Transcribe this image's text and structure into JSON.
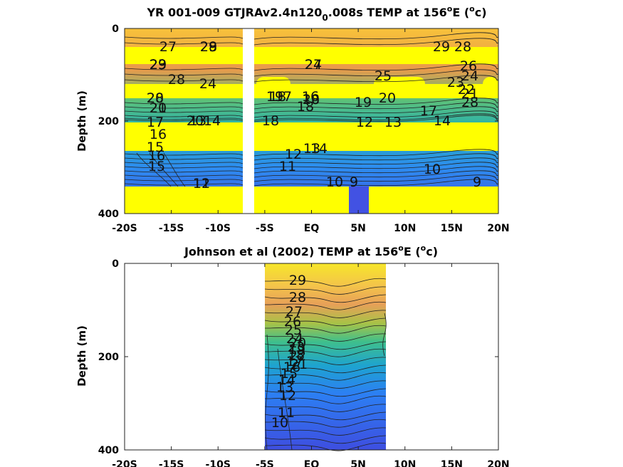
{
  "chart_data": [
    {
      "type": "heatmap",
      "title_main": "YR 001-009 GTJRAv2.4n120",
      "title_sub": "0",
      "title_tail": ".008s TEMP at 156",
      "title_sup": "o",
      "title_end": "E (",
      "title_unit_sup": "o",
      "title_unit": "c)",
      "ylabel": "Depth (m)",
      "xlim": [
        -20,
        20
      ],
      "ylim": [
        400,
        0
      ],
      "x_ticks": [
        -20,
        -15,
        -10,
        -5,
        0,
        5,
        10,
        15,
        20
      ],
      "x_tick_labels": [
        "-20S",
        "-15S",
        "-10S",
        "-5S",
        "EQ",
        "5N",
        "10N",
        "15N",
        "20N"
      ],
      "y_ticks": [
        0,
        200,
        400
      ],
      "y_tick_labels": [
        "0",
        "200",
        "400"
      ],
      "colormap": "parula",
      "missing_band_x": [
        -7.4,
        -6.8
      ],
      "contour_labels": [
        "27",
        "28",
        "29",
        "29",
        "28",
        "29",
        "29",
        "27",
        "24",
        "23",
        "28",
        "24",
        "25",
        "26",
        "24",
        "23",
        "22",
        "21",
        "28",
        "28",
        "20",
        "20",
        "18",
        "16",
        "19",
        "20",
        "21",
        "20",
        "19",
        "18",
        "17",
        "17",
        "16",
        "18",
        "17",
        "20",
        "18",
        "15",
        "14",
        "13",
        "14",
        "12",
        "13",
        "15",
        "16",
        "11",
        "10",
        "12",
        "13",
        "14",
        "9",
        "10",
        "11",
        "12",
        "9"
      ]
    },
    {
      "type": "heatmap",
      "title_main": "Johnson et al (2002) TEMP at 156",
      "title_sup": "o",
      "title_end": "E (",
      "title_unit_sup": "o",
      "title_unit": "c)",
      "ylabel": "Depth (m)",
      "xlim": [
        -20,
        20
      ],
      "ylim": [
        400,
        0
      ],
      "data_x_range": [
        -5,
        8
      ],
      "x_ticks": [
        -20,
        -15,
        -10,
        -5,
        0,
        5,
        10,
        15,
        20
      ],
      "x_tick_labels": [
        "-20S",
        "-15S",
        "-10S",
        "-5S",
        "EQ",
        "5N",
        "10N",
        "15N",
        "20N"
      ],
      "y_ticks": [
        0,
        200,
        400
      ],
      "y_tick_labels": [
        "0",
        "200",
        "400"
      ],
      "colormap": "parula",
      "contour_labels": [
        "29",
        "28",
        "27",
        "26",
        "25",
        "24",
        "23",
        "22",
        "21",
        "20",
        "19",
        "18",
        "17",
        "16",
        "15",
        "14",
        "13",
        "12",
        "11",
        "10"
      ]
    }
  ]
}
